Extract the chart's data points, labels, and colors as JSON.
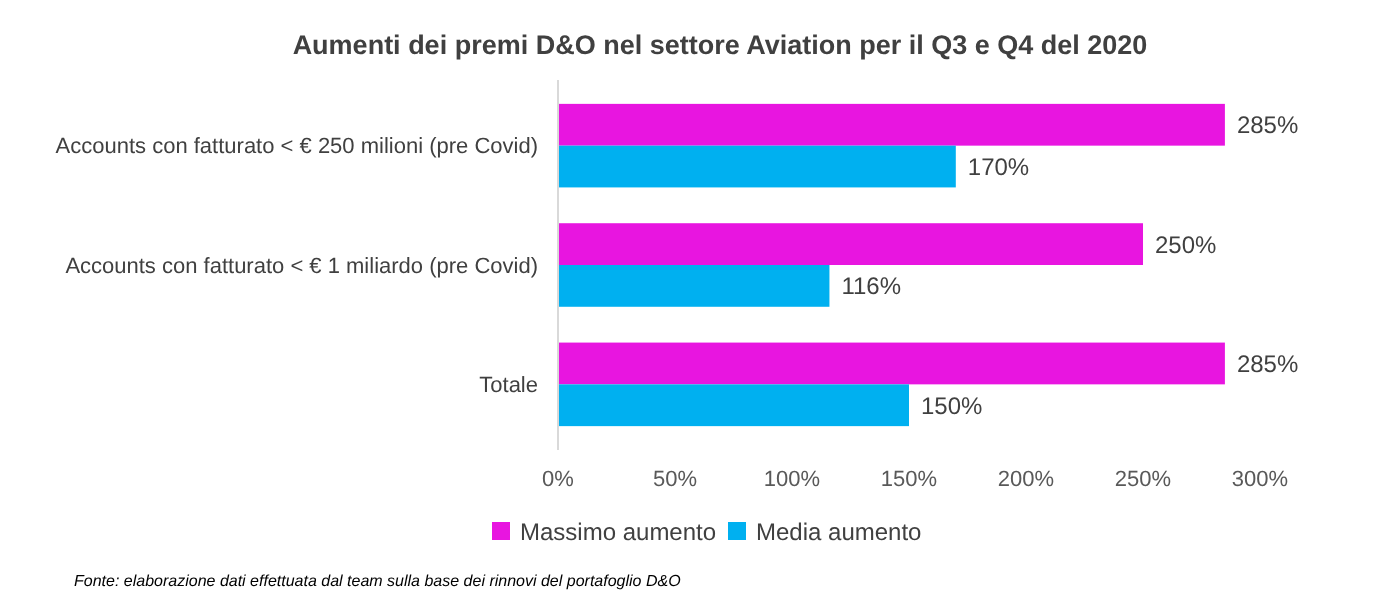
{
  "chart_data": {
    "type": "bar",
    "orientation": "horizontal",
    "title": "Aumenti dei premi D&O nel settore Aviation per il Q3 e Q4 del 2020",
    "categories": [
      "Accounts con fatturato < € 250 milioni (pre Covid)",
      "Accounts con fatturato < € 1 miliardo (pre Covid)",
      "Totale"
    ],
    "series": [
      {
        "name": "Massimo aumento",
        "color": "#e815e0",
        "values": [
          285,
          250,
          285
        ],
        "value_labels": [
          "285%",
          "250%",
          "285%"
        ]
      },
      {
        "name": "Media aumento",
        "color": "#00b0f0",
        "values": [
          170,
          116,
          150
        ],
        "value_labels": [
          "170%",
          "116%",
          "150%"
        ]
      }
    ],
    "xlim": [
      0,
      300
    ],
    "xticks": [
      {
        "value": 0,
        "label": "0%"
      },
      {
        "value": 50,
        "label": "50%"
      },
      {
        "value": 100,
        "label": "100%"
      },
      {
        "value": 150,
        "label": "150%"
      },
      {
        "value": 200,
        "label": "200%"
      },
      {
        "value": 250,
        "label": "250%"
      },
      {
        "value": 300,
        "label": "300%"
      }
    ],
    "legend": "bottom",
    "grid": false,
    "annotations": [
      "Fonte: elaborazione dati effettuata dal team sulla base dei rinnovi del portafoglio D&O"
    ]
  }
}
